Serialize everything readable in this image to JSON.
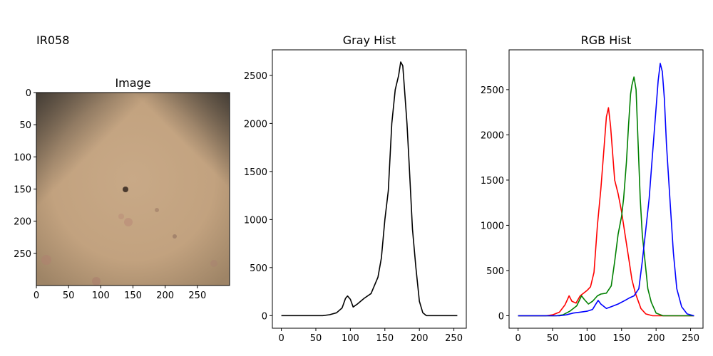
{
  "figure": {
    "title": "IR058"
  },
  "colors": {
    "gray": "#000000",
    "red": "#ff0000",
    "green": "#008000",
    "blue": "#0000ff",
    "skin": "#c9a785"
  },
  "chart_data": [
    {
      "type": "image",
      "title": "Image",
      "xlim": [
        0,
        300
      ],
      "ylim": [
        300,
        0
      ],
      "xticks": [
        0,
        50,
        100,
        150,
        200,
        250
      ],
      "yticks": [
        0,
        50,
        100,
        150,
        200,
        250
      ]
    },
    {
      "type": "line",
      "title": "Gray Hist",
      "xlim": [
        -13,
        268
      ],
      "ylim": [
        -131,
        2766
      ],
      "xticks": [
        0,
        50,
        100,
        150,
        200,
        250
      ],
      "yticks": [
        0,
        500,
        1000,
        1500,
        2000,
        2500
      ],
      "series": [
        {
          "color": "gray",
          "points": [
            [
              0,
              0
            ],
            [
              60,
              0
            ],
            [
              70,
              10
            ],
            [
              80,
              30
            ],
            [
              88,
              80
            ],
            [
              93,
              180
            ],
            [
              96,
              205
            ],
            [
              100,
              170
            ],
            [
              104,
              90
            ],
            [
              110,
              120
            ],
            [
              120,
              180
            ],
            [
              130,
              230
            ],
            [
              140,
              400
            ],
            [
              145,
              600
            ],
            [
              150,
              1000
            ],
            [
              155,
              1300
            ],
            [
              160,
              2000
            ],
            [
              165,
              2350
            ],
            [
              170,
              2500
            ],
            [
              173,
              2640
            ],
            [
              176,
              2600
            ],
            [
              178,
              2400
            ],
            [
              182,
              2000
            ],
            [
              185,
              1600
            ],
            [
              190,
              900
            ],
            [
              195,
              500
            ],
            [
              200,
              150
            ],
            [
              205,
              30
            ],
            [
              210,
              0
            ],
            [
              255,
              0
            ]
          ]
        }
      ]
    },
    {
      "type": "line",
      "title": "RGB Hist",
      "xlim": [
        -13,
        268
      ],
      "ylim": [
        -138,
        2940
      ],
      "xticks": [
        0,
        50,
        100,
        150,
        200,
        250
      ],
      "yticks": [
        0,
        500,
        1000,
        1500,
        2000,
        2500
      ],
      "series": [
        {
          "color": "red",
          "points": [
            [
              0,
              0
            ],
            [
              40,
              0
            ],
            [
              50,
              10
            ],
            [
              60,
              40
            ],
            [
              68,
              120
            ],
            [
              74,
              220
            ],
            [
              78,
              160
            ],
            [
              84,
              140
            ],
            [
              90,
              220
            ],
            [
              95,
              250
            ],
            [
              100,
              280
            ],
            [
              105,
              320
            ],
            [
              110,
              480
            ],
            [
              115,
              1000
            ],
            [
              120,
              1400
            ],
            [
              125,
              1900
            ],
            [
              128,
              2200
            ],
            [
              131,
              2300
            ],
            [
              134,
              2100
            ],
            [
              137,
              1800
            ],
            [
              140,
              1500
            ],
            [
              145,
              1350
            ],
            [
              150,
              1150
            ],
            [
              155,
              900
            ],
            [
              160,
              650
            ],
            [
              165,
              400
            ],
            [
              170,
              250
            ],
            [
              178,
              80
            ],
            [
              185,
              20
            ],
            [
              195,
              0
            ],
            [
              255,
              0
            ]
          ]
        },
        {
          "color": "green",
          "points": [
            [
              0,
              0
            ],
            [
              55,
              0
            ],
            [
              65,
              10
            ],
            [
              75,
              50
            ],
            [
              85,
              110
            ],
            [
              92,
              220
            ],
            [
              96,
              180
            ],
            [
              102,
              130
            ],
            [
              108,
              160
            ],
            [
              115,
              220
            ],
            [
              120,
              240
            ],
            [
              128,
              250
            ],
            [
              135,
              330
            ],
            [
              140,
              600
            ],
            [
              145,
              900
            ],
            [
              150,
              1100
            ],
            [
              153,
              1300
            ],
            [
              157,
              1700
            ],
            [
              160,
              2100
            ],
            [
              163,
              2450
            ],
            [
              165,
              2550
            ],
            [
              168,
              2640
            ],
            [
              171,
              2500
            ],
            [
              174,
              1900
            ],
            [
              177,
              1300
            ],
            [
              180,
              900
            ],
            [
              184,
              600
            ],
            [
              188,
              300
            ],
            [
              193,
              150
            ],
            [
              200,
              30
            ],
            [
              210,
              0
            ],
            [
              255,
              0
            ]
          ]
        },
        {
          "color": "blue",
          "points": [
            [
              0,
              0
            ],
            [
              60,
              0
            ],
            [
              70,
              10
            ],
            [
              80,
              30
            ],
            [
              90,
              40
            ],
            [
              100,
              50
            ],
            [
              108,
              70
            ],
            [
              112,
              120
            ],
            [
              116,
              170
            ],
            [
              120,
              130
            ],
            [
              128,
              80
            ],
            [
              135,
              100
            ],
            [
              145,
              130
            ],
            [
              155,
              170
            ],
            [
              162,
              200
            ],
            [
              168,
              220
            ],
            [
              175,
              300
            ],
            [
              180,
              600
            ],
            [
              185,
              950
            ],
            [
              190,
              1300
            ],
            [
              195,
              1800
            ],
            [
              200,
              2300
            ],
            [
              203,
              2600
            ],
            [
              206,
              2790
            ],
            [
              209,
              2700
            ],
            [
              212,
              2400
            ],
            [
              215,
              1900
            ],
            [
              220,
              1300
            ],
            [
              225,
              700
            ],
            [
              230,
              300
            ],
            [
              237,
              100
            ],
            [
              245,
              20
            ],
            [
              255,
              0
            ]
          ]
        }
      ]
    }
  ]
}
